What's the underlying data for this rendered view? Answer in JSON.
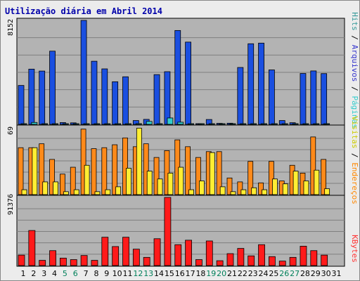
{
  "title": "Utilização diária em Abril 2014",
  "chart_data": {
    "type": "bar",
    "title": "Utilização diária em Abril 2014",
    "days": [
      "1",
      "2",
      "3",
      "4",
      "5",
      "6",
      "7",
      "8",
      "9",
      "10",
      "11",
      "12",
      "13",
      "14",
      "15",
      "16",
      "17",
      "18",
      "19",
      "20",
      "21",
      "22",
      "23",
      "24",
      "25",
      "26",
      "27",
      "28",
      "29",
      "30",
      "31"
    ],
    "weekend_days": [
      "5",
      "6",
      "12",
      "13",
      "19",
      "20",
      "26",
      "27"
    ],
    "panels": [
      {
        "id": "top",
        "ymax": 8152,
        "ymax_label": "8152",
        "legend": [
          {
            "label": "Hits",
            "color": "#339999"
          },
          {
            "sep": "/"
          },
          {
            "label": "Arquivos",
            "color": "#3333cc"
          },
          {
            "sep": "/"
          },
          {
            "label": "Páginas",
            "color": "#33cccc"
          }
        ],
        "series": [
          {
            "name": "Hits",
            "color": "#1a4fe0",
            "values": [
              3050,
              4330,
              4180,
              5740,
              140,
              120,
              8152,
              4950,
              4350,
              3340,
              3730,
              300,
              390,
              3900,
              4130,
              7360,
              6450,
              40,
              380,
              80,
              90,
              4460,
              6320,
              6370,
              4270,
              300,
              130,
              3990,
              4190,
              3980,
              0
            ]
          },
          {
            "name": "Arquivos",
            "color": "#1a4fe0",
            "values": [
              0,
              0,
              0,
              0,
              0,
              0,
              0,
              0,
              0,
              0,
              0,
              0,
              0,
              0,
              0,
              0,
              0,
              0,
              0,
              0,
              0,
              0,
              0,
              0,
              0,
              0,
              0,
              0,
              0,
              0,
              0
            ]
          },
          {
            "name": "Páginas",
            "color": "#33cccc",
            "values": [
              20,
              150,
              20,
              40,
              20,
              20,
              40,
              20,
              20,
              20,
              20,
              60,
              230,
              20,
              500,
              170,
              20,
              20,
              20,
              20,
              20,
              20,
              20,
              20,
              20,
              20,
              20,
              20,
              20,
              20,
              0
            ]
          }
        ]
      },
      {
        "id": "middle",
        "ymax": 69,
        "ymax_label": "69",
        "legend": [
          {
            "label": "Visitas",
            "color": "#cccc00"
          },
          {
            "sep": "/"
          },
          {
            "label": "Endereços",
            "color": "#ff8800"
          }
        ],
        "series": [
          {
            "name": "Endereços",
            "color": "#ff8a1a",
            "values": [
              48,
              48,
              52,
              36,
              21,
              28,
              67,
              47,
              48,
              51,
              58,
              49,
              52,
              38,
              45,
              56,
              49,
              38,
              44,
              44,
              17,
              13,
              34,
              12,
              34,
              14,
              30,
              22,
              59,
              36,
              0
            ]
          },
          {
            "name": "Visitas",
            "color": "#ffee33",
            "values": [
              5,
              48,
              13,
              13,
              3,
              5,
              30,
              3,
              5,
              8,
              27,
              68,
              24,
              16,
              22,
              28,
              5,
              14,
              43,
              8,
              3,
              5,
              7,
              5,
              16,
              11,
              24,
              14,
              25,
              6,
              0
            ]
          }
        ]
      },
      {
        "id": "bottom",
        "ymax": 91376,
        "ymax_label": "91376",
        "legend": [
          {
            "label": "KBytes",
            "color": "#ff3333"
          }
        ],
        "series": [
          {
            "name": "KBytes",
            "color": "#ff1a1a",
            "values": [
              14000,
              47000,
              7000,
              20000,
              10000,
              8000,
              13500,
              7000,
              38000,
              25500,
              38000,
              22000,
              11000,
              36000,
              91376,
              28000,
              34000,
              8000,
              33000,
              6500,
              16000,
              23000,
              13000,
              28000,
              12000,
              6000,
              11000,
              26000,
              20000,
              14000,
              0
            ]
          }
        ]
      }
    ]
  }
}
